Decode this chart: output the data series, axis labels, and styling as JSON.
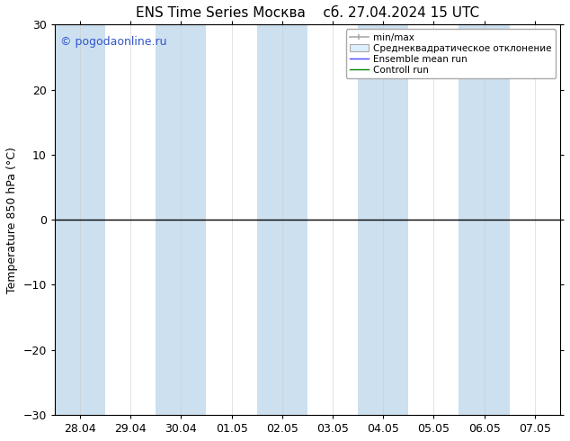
{
  "title_left": "ENS Time Series Москва",
  "title_right": "сб. 27.04.2024 15 UTC",
  "ylabel": "Temperature 850 hPa (°C)",
  "ylim": [
    -30,
    30
  ],
  "yticks": [
    -30,
    -20,
    -10,
    0,
    10,
    20,
    30
  ],
  "xtick_labels": [
    "28.04",
    "29.04",
    "30.04",
    "01.05",
    "02.05",
    "03.05",
    "04.05",
    "05.05",
    "06.05",
    "07.05"
  ],
  "watermark": "© pogodaonline.ru",
  "watermark_color": "#3355cc",
  "shaded_indices": [
    0,
    2,
    4,
    6,
    8
  ],
  "band_color": "#cce0f0",
  "background_color": "#ffffff",
  "plot_bg_color": "#ffffff",
  "legend_labels": [
    "min/max",
    "Среднеквадратическое отклонение",
    "Ensemble mean run",
    "Controll run"
  ],
  "legend_line_colors": [
    "#aaaaaa",
    "#cccccc",
    "#4444ff",
    "#008800"
  ],
  "zero_line_color": "#000000",
  "spine_color": "#000000",
  "font_size": 9,
  "title_font_size": 11,
  "tick_font_size": 9,
  "ylabel_font_size": 9
}
